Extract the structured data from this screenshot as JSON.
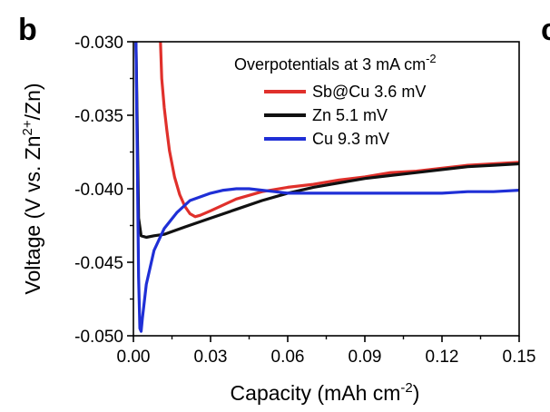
{
  "panel_label": "b",
  "next_panel_label": "c",
  "chart_data": {
    "type": "line",
    "xlabel": "Capacity (mAh cm",
    "xlabel_sup": "-2",
    "xlabel_end": ")",
    "ylabel": "Voltage (V vs. Zn",
    "ylabel_sup": "2+",
    "ylabel_end": "/Zn)",
    "xlim": [
      0.0,
      0.15
    ],
    "ylim": [
      -0.05,
      -0.03
    ],
    "xticks": [
      0.0,
      0.03,
      0.06,
      0.09,
      0.12,
      0.15
    ],
    "xtick_labels": [
      "0.00",
      "0.03",
      "0.06",
      "0.09",
      "0.12",
      "0.15"
    ],
    "yticks": [
      -0.05,
      -0.045,
      -0.04,
      -0.035,
      -0.03
    ],
    "ytick_labels": [
      "-0.050",
      "-0.045",
      "-0.040",
      "-0.035",
      "-0.030"
    ],
    "grid": false,
    "legend_title": "Overpotentials at 3 mA cm",
    "legend_title_sup": "-2",
    "legend_placement": "top-right",
    "series": [
      {
        "name": "Sb@Cu 3.6 mV",
        "color": "#e0302b",
        "x": [
          0.0105,
          0.011,
          0.012,
          0.013,
          0.014,
          0.016,
          0.018,
          0.02,
          0.022,
          0.024,
          0.026,
          0.03,
          0.035,
          0.04,
          0.05,
          0.06,
          0.07,
          0.08,
          0.09,
          0.1,
          0.11,
          0.12,
          0.13,
          0.14,
          0.15
        ],
        "y": [
          -0.03,
          -0.0325,
          -0.0345,
          -0.036,
          -0.0374,
          -0.0392,
          -0.0404,
          -0.0412,
          -0.0417,
          -0.0419,
          -0.0418,
          -0.0415,
          -0.0411,
          -0.0407,
          -0.0402,
          -0.0399,
          -0.0397,
          -0.0394,
          -0.0392,
          -0.0389,
          -0.0388,
          -0.0386,
          -0.0384,
          -0.0383,
          -0.0382
        ]
      },
      {
        "name": "Zn 5.1 mV",
        "color": "#111111",
        "x": [
          0.001,
          0.0015,
          0.002,
          0.003,
          0.005,
          0.008,
          0.012,
          0.02,
          0.03,
          0.04,
          0.05,
          0.06,
          0.07,
          0.08,
          0.09,
          0.1,
          0.11,
          0.12,
          0.13,
          0.14,
          0.15
        ],
        "y": [
          -0.03,
          -0.036,
          -0.042,
          -0.0432,
          -0.0433,
          -0.0432,
          -0.0431,
          -0.0426,
          -0.042,
          -0.0414,
          -0.0408,
          -0.0403,
          -0.0399,
          -0.0396,
          -0.0393,
          -0.0391,
          -0.0389,
          -0.0387,
          -0.0385,
          -0.0384,
          -0.0383
        ]
      },
      {
        "name": "Cu 9.3 mV",
        "color": "#1f2fd6",
        "x": [
          0.001,
          0.0015,
          0.002,
          0.0025,
          0.003,
          0.0035,
          0.005,
          0.008,
          0.012,
          0.017,
          0.022,
          0.03,
          0.035,
          0.04,
          0.045,
          0.05,
          0.055,
          0.06,
          0.07,
          0.08,
          0.09,
          0.1,
          0.11,
          0.12,
          0.13,
          0.14,
          0.15
        ],
        "y": [
          -0.03,
          -0.038,
          -0.046,
          -0.0495,
          -0.0497,
          -0.0488,
          -0.0465,
          -0.0442,
          -0.0427,
          -0.0416,
          -0.0408,
          -0.0403,
          -0.0401,
          -0.04,
          -0.04,
          -0.0401,
          -0.0402,
          -0.0403,
          -0.0403,
          -0.0403,
          -0.0403,
          -0.0403,
          -0.0403,
          -0.0403,
          -0.0402,
          -0.0402,
          -0.0401
        ]
      }
    ]
  }
}
